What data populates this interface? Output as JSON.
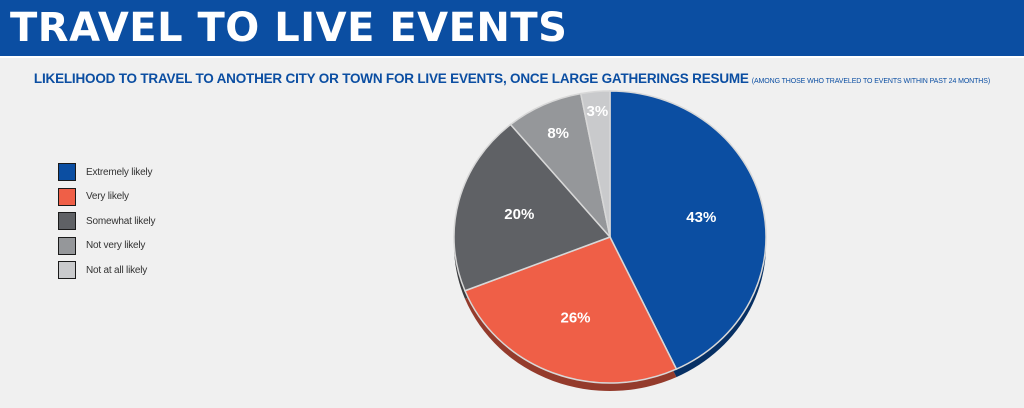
{
  "header": {
    "title": "TRAVEL TO LIVE EVENTS"
  },
  "chart_data": {
    "type": "pie",
    "title": "LIKELIHOOD TO TRAVEL TO ANOTHER CITY OR TOWN FOR LIVE EVENTS, ONCE LARGE GATHERINGS RESUME",
    "subtitle": "(AMONG THOSE WHO TRAVELED TO EVENTS WITHIN PAST 24 MONTHS)",
    "categories": [
      "Extremely likely",
      "Very likely",
      "Somewhat likely",
      "Not very likely",
      "Not at all likely"
    ],
    "values": [
      43,
      26,
      20,
      8,
      3
    ],
    "labels": [
      "43%",
      "26%",
      "20%",
      "8%",
      "3%"
    ],
    "colors": [
      "#0b4ea2",
      "#ef5f47",
      "#5f6165",
      "#95979a",
      "#c9cacc"
    ],
    "legend_position": "left"
  },
  "colors": {
    "banner": "#0b4ea2",
    "background": "#f0f0f0"
  }
}
